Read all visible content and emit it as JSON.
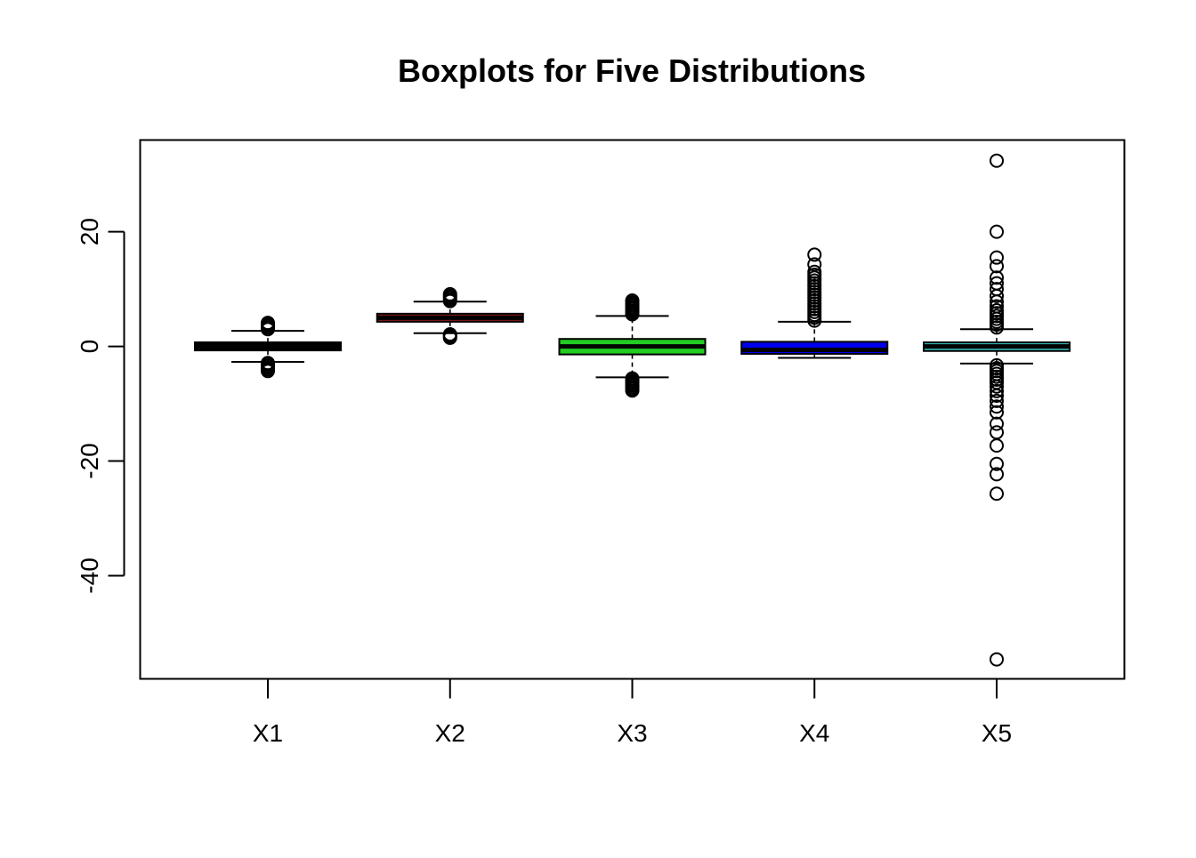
{
  "chart_data": {
    "type": "boxplot",
    "title": "Boxplots for Five Distributions",
    "xlabel": "",
    "ylabel": "",
    "ylim": [
      -58,
      36
    ],
    "yticks": [
      -40,
      -20,
      0,
      20
    ],
    "categories": [
      "X1",
      "X2",
      "X3",
      "X4",
      "X5"
    ],
    "grid": false,
    "legend": "none",
    "series": [
      {
        "category": "X1",
        "fill": "#000000",
        "median": 0.0,
        "q1": -0.7,
        "q3": 0.7,
        "whisker_low": -2.7,
        "whisker_high": 2.7,
        "outliers": [
          3.0,
          3.3,
          3.6,
          3.9,
          4.1,
          -2.9,
          -3.1,
          -3.4,
          -3.7,
          -4.0,
          -4.3
        ]
      },
      {
        "category": "X2",
        "fill": "#8b1a1a",
        "median": 5.0,
        "q1": 4.3,
        "q3": 5.7,
        "whisker_low": 2.3,
        "whisker_high": 7.8,
        "outliers": [
          7.9,
          8.2,
          8.5,
          8.8,
          9.1,
          2.1,
          1.9,
          1.7,
          1.5
        ]
      },
      {
        "category": "X3",
        "fill": "#22cc22",
        "median": 0.0,
        "q1": -1.4,
        "q3": 1.3,
        "whisker_low": -5.4,
        "whisker_high": 5.3,
        "outliers": [
          5.6,
          5.9,
          6.2,
          6.5,
          6.8,
          7.1,
          7.4,
          7.7,
          8.0,
          -5.6,
          -5.9,
          -6.2,
          -6.5,
          -6.8,
          -7.1,
          -7.4,
          -7.7
        ]
      },
      {
        "category": "X4",
        "fill": "#0000ee",
        "median": -0.6,
        "q1": -1.3,
        "q3": 0.8,
        "whisker_low": -2.0,
        "whisker_high": 4.3,
        "outliers": [
          4.5,
          5.0,
          5.5,
          6.0,
          6.5,
          7.0,
          7.5,
          8.0,
          8.5,
          9.0,
          9.5,
          10.0,
          10.5,
          11.0,
          11.5,
          12.0,
          12.5,
          13.0,
          14.3,
          16.0
        ]
      },
      {
        "category": "X5",
        "fill": "#35b8b8",
        "median": 0.0,
        "q1": -0.8,
        "q3": 0.7,
        "whisker_low": -3.0,
        "whisker_high": 3.0,
        "outliers": [
          3.3,
          3.8,
          4.3,
          4.8,
          5.3,
          5.8,
          6.3,
          7.0,
          7.8,
          8.8,
          10.0,
          11.0,
          12.0,
          14.0,
          15.5,
          20.0,
          32.4,
          -3.3,
          -3.8,
          -4.3,
          -4.8,
          -5.3,
          -5.8,
          -6.3,
          -7.0,
          -7.8,
          -8.6,
          -9.5,
          -10.5,
          -11.5,
          -13.5,
          -15.0,
          -17.3,
          -20.5,
          -22.3,
          -25.7,
          -54.6
        ]
      }
    ]
  }
}
